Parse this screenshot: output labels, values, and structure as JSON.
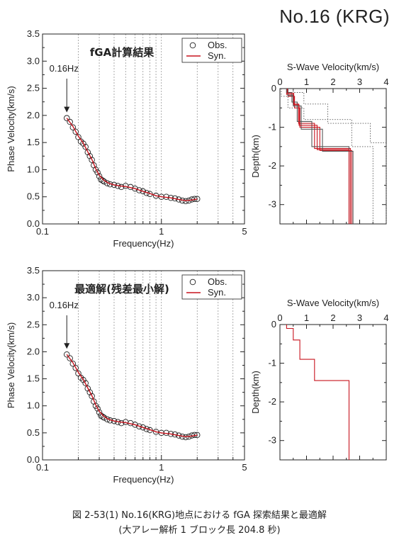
{
  "station_label": "No.16 (KRG)",
  "caption": {
    "line1": "図 2-53(1) No.16(KRG)地点における fGA 探索結果と最適解",
    "line2": "(大アレー解析 1 ブロック長 204.8 秒)"
  },
  "chart_data": [
    {
      "type": "scatter",
      "title": "fGA計算結果",
      "xlabel": "Frequency(Hz)",
      "ylabel": "Phase Velocity(km/s)",
      "xscale": "log",
      "xlim": [
        0.1,
        5
      ],
      "ylim": [
        0,
        3.5
      ],
      "xticks": [
        "0.1",
        "1",
        "5"
      ],
      "yticks": [
        "0.0",
        "0.5",
        "1.0",
        "1.5",
        "2.0",
        "2.5",
        "3.0",
        "3.5"
      ],
      "grid": true,
      "legend": "top-right",
      "annotation": "0.16Hz",
      "series": [
        {
          "name": "Obs.",
          "marker": "circle",
          "x": [
            0.16,
            0.17,
            0.18,
            0.19,
            0.2,
            0.21,
            0.22,
            0.23,
            0.24,
            0.25,
            0.26,
            0.27,
            0.28,
            0.29,
            0.3,
            0.31,
            0.32,
            0.33,
            0.35,
            0.37,
            0.4,
            0.43,
            0.46,
            0.5,
            0.55,
            0.6,
            0.65,
            0.7,
            0.75,
            0.8,
            0.9,
            1.0,
            1.1,
            1.2,
            1.3,
            1.4,
            1.5,
            1.6,
            1.7,
            1.8,
            1.9,
            2.0
          ],
          "y": [
            1.95,
            1.88,
            1.78,
            1.7,
            1.6,
            1.52,
            1.48,
            1.42,
            1.32,
            1.25,
            1.18,
            1.08,
            1.0,
            0.95,
            0.88,
            0.82,
            0.8,
            0.78,
            0.75,
            0.73,
            0.72,
            0.7,
            0.68,
            0.7,
            0.68,
            0.65,
            0.62,
            0.6,
            0.57,
            0.55,
            0.52,
            0.5,
            0.5,
            0.48,
            0.47,
            0.45,
            0.43,
            0.42,
            0.43,
            0.45,
            0.46,
            0.46
          ]
        },
        {
          "name": "Syn.",
          "color": "#c8141e",
          "x": [
            0.16,
            0.18,
            0.2,
            0.22,
            0.24,
            0.26,
            0.28,
            0.3,
            0.33,
            0.36,
            0.4,
            0.45,
            0.5,
            0.6,
            0.7,
            0.8,
            0.9,
            1.0,
            1.2,
            1.4,
            1.6,
            1.8,
            2.0
          ],
          "y": [
            1.95,
            1.8,
            1.62,
            1.49,
            1.33,
            1.19,
            1.02,
            0.9,
            0.8,
            0.75,
            0.72,
            0.7,
            0.69,
            0.65,
            0.6,
            0.56,
            0.52,
            0.5,
            0.48,
            0.45,
            0.43,
            0.44,
            0.46
          ]
        }
      ]
    },
    {
      "type": "line",
      "title": "",
      "xlabel": "S-Wave Velocity(km/s)",
      "ylabel": "Depth(km)",
      "xlim": [
        0,
        4
      ],
      "ylim": [
        -3.5,
        0
      ],
      "xticks": [
        "0",
        "1",
        "2",
        "3",
        "4"
      ],
      "yticks": [
        "0",
        "-1",
        "-2",
        "-3"
      ],
      "grid": false,
      "models": [
        {
          "color": "#c8141e",
          "vs": [
            0.25,
            0.5,
            0.7,
            1.3,
            2.65
          ],
          "bottom": [
            0.15,
            0.4,
            0.9,
            1.55,
            3.5
          ]
        },
        {
          "color": "#c8141e",
          "vs": [
            0.3,
            0.55,
            0.75,
            1.5,
            2.7
          ],
          "bottom": [
            0.2,
            0.5,
            1.0,
            1.6,
            3.5
          ]
        },
        {
          "color": "#555555",
          "vs": [
            0.25,
            0.45,
            0.65,
            1.2,
            2.6
          ],
          "bottom": [
            0.1,
            0.35,
            0.85,
            1.5,
            3.5
          ]
        },
        {
          "color": "#555555",
          "vs": [
            0.3,
            0.5,
            0.8,
            1.6,
            2.75
          ],
          "bottom": [
            0.18,
            0.45,
            1.05,
            1.62,
            3.5
          ]
        },
        {
          "color": "#c8141e",
          "vs": [
            0.28,
            0.52,
            0.72,
            1.4,
            2.6
          ],
          "bottom": [
            0.12,
            0.42,
            0.95,
            1.58,
            3.5
          ]
        }
      ],
      "bounds": [
        {
          "style": "dotted",
          "vs": [
            0.05,
            0.3,
            0.9,
            2.7,
            3.5
          ],
          "bottom": [
            0.2,
            0.5,
            0.8,
            1.5,
            3.5
          ]
        },
        {
          "style": "dotted",
          "vs": [
            0.5,
            0.9,
            1.8,
            3.4,
            4.0
          ],
          "bottom": [
            0.1,
            0.4,
            0.9,
            1.4,
            3.5
          ]
        }
      ]
    },
    {
      "type": "scatter",
      "title": "最適解(残差最小解)",
      "xlabel": "Frequency(Hz)",
      "ylabel": "Phase Velocity(km/s)",
      "xscale": "log",
      "xlim": [
        0.1,
        5
      ],
      "ylim": [
        0,
        3.5
      ],
      "xticks": [
        "0.1",
        "1",
        "5"
      ],
      "yticks": [
        "0.0",
        "0.5",
        "1.0",
        "1.5",
        "2.0",
        "2.5",
        "3.0",
        "3.5"
      ],
      "grid": true,
      "legend": "top-right",
      "annotation": "0.16Hz",
      "series": [
        {
          "name": "Obs.",
          "marker": "circle",
          "x": [
            0.16,
            0.17,
            0.18,
            0.19,
            0.2,
            0.21,
            0.22,
            0.23,
            0.24,
            0.25,
            0.26,
            0.27,
            0.28,
            0.29,
            0.3,
            0.31,
            0.32,
            0.33,
            0.35,
            0.37,
            0.4,
            0.43,
            0.46,
            0.5,
            0.55,
            0.6,
            0.65,
            0.7,
            0.75,
            0.8,
            0.9,
            1.0,
            1.1,
            1.2,
            1.3,
            1.4,
            1.5,
            1.6,
            1.7,
            1.8,
            1.9,
            2.0
          ],
          "y": [
            1.95,
            1.88,
            1.78,
            1.7,
            1.6,
            1.52,
            1.48,
            1.42,
            1.32,
            1.25,
            1.18,
            1.08,
            1.0,
            0.95,
            0.88,
            0.82,
            0.8,
            0.78,
            0.75,
            0.73,
            0.72,
            0.7,
            0.68,
            0.7,
            0.68,
            0.65,
            0.62,
            0.6,
            0.57,
            0.55,
            0.52,
            0.5,
            0.5,
            0.48,
            0.47,
            0.45,
            0.43,
            0.42,
            0.43,
            0.45,
            0.46,
            0.46
          ]
        },
        {
          "name": "Syn.",
          "color": "#c8141e",
          "x": [
            0.16,
            0.18,
            0.2,
            0.22,
            0.24,
            0.26,
            0.28,
            0.3,
            0.33,
            0.36,
            0.4,
            0.45,
            0.5,
            0.6,
            0.7,
            0.8,
            0.9,
            1.0,
            1.2,
            1.4,
            1.6,
            1.8,
            2.0
          ],
          "y": [
            1.95,
            1.8,
            1.62,
            1.49,
            1.33,
            1.19,
            1.02,
            0.9,
            0.8,
            0.75,
            0.72,
            0.7,
            0.69,
            0.65,
            0.6,
            0.56,
            0.52,
            0.5,
            0.48,
            0.45,
            0.43,
            0.44,
            0.46
          ]
        }
      ]
    },
    {
      "type": "line",
      "title": "",
      "xlabel": "S-Wave Velocity(km/s)",
      "ylabel": "Depth(km)",
      "xlim": [
        0,
        4
      ],
      "ylim": [
        -3.5,
        0
      ],
      "xticks": [
        "0",
        "1",
        "2",
        "3",
        "4"
      ],
      "yticks": [
        "0",
        "-1",
        "-2",
        "-3"
      ],
      "grid": false,
      "models": [
        {
          "color": "#c8141e",
          "vs": [
            0.25,
            0.5,
            0.75,
            1.3,
            2.6
          ],
          "bottom": [
            0.1,
            0.4,
            0.9,
            1.45,
            3.5
          ]
        }
      ],
      "bounds": []
    }
  ]
}
